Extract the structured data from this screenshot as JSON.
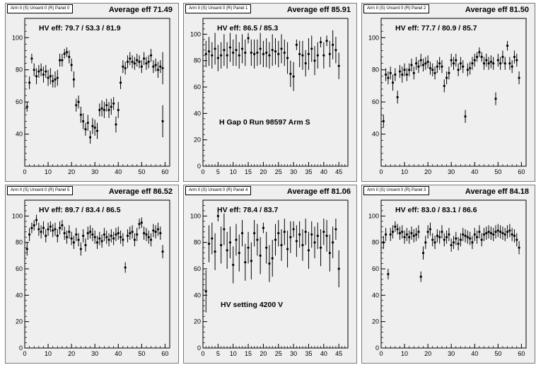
{
  "panels": [
    {
      "id": "p0",
      "title": "Arm II (S) Unsent 0 (R) Panel 0",
      "avg_label": "Average eff 71.49",
      "hv_label": "HV eff:   79.7 / 53.3 / 81.9",
      "extra_label": ""
    },
    {
      "id": "p1",
      "title": "Arm II (S) Unsent 0 (R) Panel 1",
      "avg_label": "Average eff 85.91",
      "hv_label": "HV eff:   86.5 / 85.3",
      "extra_label": "H Gap 0 Run 98597 Arm S"
    },
    {
      "id": "p2",
      "title": "Arm II (S) Unsent 0 (R) Panel 2",
      "avg_label": "Average eff 81.50",
      "hv_label": "HV eff:   77.7 / 80.9 / 85.7",
      "extra_label": ""
    },
    {
      "id": "p3",
      "title": "Arm II (S) Unsent 0 (R) Panel 5",
      "avg_label": "Average eff 86.52",
      "hv_label": "HV eff:   89.7 / 83.4 / 86.5",
      "extra_label": ""
    },
    {
      "id": "p4",
      "title": "Arm II (S) Unsent 0 (R) Panel 4",
      "avg_label": "Average eff 81.06",
      "hv_label": "HV eff:   78.4 / 83.7",
      "extra_label": "HV setting 4200 V"
    },
    {
      "id": "p5",
      "title": "Arm II (S) Unsent 0 (R) Panel 3",
      "avg_label": "Average eff 84.18",
      "hv_label": "HV eff:   83.0 / 83.1 / 86.6",
      "extra_label": ""
    }
  ],
  "chart_data": [
    {
      "type": "scatter",
      "xlim": [
        0,
        62
      ],
      "ylim": [
        20,
        112
      ],
      "xticks": [
        "0",
        "10",
        "20",
        "30",
        "40",
        "50",
        "60"
      ],
      "yticks": [
        "40",
        "60",
        "80",
        "100"
      ],
      "x": [
        1,
        2,
        3,
        4,
        5,
        6,
        7,
        8,
        9,
        10,
        11,
        12,
        13,
        14,
        15,
        16,
        17,
        18,
        19,
        20,
        21,
        22,
        23,
        24,
        25,
        26,
        27,
        28,
        29,
        30,
        31,
        32,
        33,
        34,
        35,
        36,
        37,
        38,
        39,
        40,
        41,
        42,
        43,
        44,
        45,
        46,
        47,
        48,
        49,
        50,
        51,
        52,
        53,
        54,
        55,
        56,
        57,
        58,
        59
      ],
      "y": [
        57,
        72,
        87,
        80,
        76,
        79,
        80,
        77,
        79,
        75,
        76,
        73,
        74,
        75,
        86,
        86,
        90,
        91,
        88,
        83,
        74,
        58,
        60,
        52,
        48,
        43,
        47,
        38,
        45,
        44,
        42,
        55,
        56,
        55,
        58,
        55,
        57,
        59,
        46,
        55,
        72,
        82,
        81,
        85,
        87,
        85,
        84,
        86,
        85,
        82,
        87,
        84,
        85,
        89,
        82,
        83,
        80,
        82,
        81
      ],
      "err": [
        3,
        4,
        3,
        4,
        5,
        4,
        4,
        5,
        4,
        5,
        5,
        4,
        5,
        5,
        4,
        4,
        3,
        3,
        4,
        4,
        5,
        4,
        4,
        5,
        5,
        4,
        5,
        4,
        5,
        5,
        5,
        4,
        5,
        5,
        4,
        5,
        5,
        4,
        5,
        5,
        4,
        4,
        4,
        4,
        4,
        4,
        4,
        4,
        4,
        4,
        4,
        4,
        4,
        4,
        4,
        4,
        5,
        4,
        10
      ],
      "extra": [
        {
          "x": 59,
          "y": 48,
          "err": 10
        }
      ]
    },
    {
      "type": "scatter",
      "xlim": [
        0,
        48
      ],
      "ylim": [
        0,
        112
      ],
      "xticks": [
        "0",
        "5",
        "10",
        "15",
        "20",
        "25",
        "30",
        "35",
        "40",
        "45"
      ],
      "yticks": [
        "0",
        "20",
        "40",
        "60",
        "80",
        "100"
      ],
      "x": [
        1,
        2,
        3,
        4,
        5,
        6,
        7,
        8,
        9,
        10,
        11,
        12,
        13,
        14,
        15,
        16,
        17,
        18,
        19,
        20,
        21,
        22,
        23,
        24,
        25,
        26,
        27,
        28,
        29,
        30,
        31,
        32,
        33,
        34,
        35,
        36,
        37,
        38,
        39,
        40,
        41,
        42,
        43,
        44,
        45
      ],
      "y": [
        85,
        87,
        84,
        89,
        82,
        84,
        88,
        84,
        90,
        86,
        88,
        84,
        89,
        86,
        97,
        86,
        85,
        86,
        89,
        85,
        86,
        84,
        88,
        87,
        85,
        89,
        86,
        82,
        70,
        68,
        92,
        85,
        84,
        78,
        85,
        89,
        80,
        84,
        94,
        84,
        95,
        85,
        92,
        88,
        76
      ],
      "err": [
        10,
        11,
        10,
        12,
        10,
        10,
        12,
        10,
        11,
        10,
        12,
        10,
        11,
        10,
        4,
        10,
        11,
        10,
        12,
        10,
        11,
        10,
        12,
        10,
        10,
        11,
        10,
        12,
        10,
        11,
        4,
        10,
        11,
        10,
        12,
        10,
        11,
        10,
        4,
        10,
        4,
        10,
        11,
        10,
        10
      ]
    },
    {
      "type": "scatter",
      "xlim": [
        0,
        62
      ],
      "ylim": [
        20,
        112
      ],
      "xticks": [
        "0",
        "10",
        "20",
        "30",
        "40",
        "50",
        "60"
      ],
      "yticks": [
        "40",
        "60",
        "80",
        "100"
      ],
      "x": [
        1,
        2,
        3,
        4,
        5,
        6,
        7,
        8,
        9,
        10,
        11,
        12,
        13,
        14,
        15,
        16,
        17,
        18,
        19,
        20,
        21,
        22,
        23,
        24,
        25,
        26,
        27,
        28,
        29,
        30,
        31,
        32,
        33,
        34,
        35,
        36,
        37,
        38,
        39,
        40,
        41,
        42,
        43,
        44,
        45,
        46,
        47,
        48,
        49,
        50,
        51,
        52,
        53,
        54,
        55,
        56,
        57,
        58,
        59
      ],
      "y": [
        48,
        77,
        75,
        78,
        72,
        77,
        63,
        79,
        77,
        80,
        77,
        80,
        83,
        78,
        84,
        82,
        86,
        83,
        84,
        85,
        81,
        80,
        78,
        82,
        84,
        82,
        70,
        75,
        78,
        86,
        84,
        86,
        80,
        84,
        82,
        51,
        80,
        81,
        84,
        86,
        88,
        91,
        88,
        84,
        86,
        84,
        85,
        84,
        62,
        86,
        84,
        88,
        84,
        95,
        84,
        82,
        88,
        86,
        75
      ],
      "err": [
        4,
        4,
        4,
        4,
        5,
        4,
        4,
        4,
        5,
        4,
        4,
        4,
        4,
        4,
        4,
        4,
        4,
        4,
        4,
        4,
        4,
        4,
        4,
        4,
        4,
        4,
        4,
        4,
        4,
        4,
        4,
        4,
        4,
        4,
        4,
        4,
        4,
        4,
        4,
        4,
        3,
        3,
        3,
        4,
        4,
        4,
        4,
        4,
        4,
        4,
        4,
        4,
        4,
        3,
        4,
        4,
        4,
        4,
        4
      ]
    },
    {
      "type": "scatter",
      "xlim": [
        0,
        62
      ],
      "ylim": [
        0,
        112
      ],
      "xticks": [
        "0",
        "10",
        "20",
        "30",
        "40",
        "50",
        "60"
      ],
      "yticks": [
        "0",
        "20",
        "40",
        "60",
        "80",
        "100"
      ],
      "x": [
        1,
        2,
        3,
        4,
        5,
        6,
        7,
        8,
        9,
        10,
        11,
        12,
        13,
        14,
        15,
        16,
        17,
        18,
        19,
        20,
        21,
        22,
        23,
        24,
        25,
        26,
        27,
        28,
        29,
        30,
        31,
        32,
        33,
        34,
        35,
        36,
        37,
        38,
        39,
        40,
        41,
        42,
        43,
        44,
        45,
        46,
        47,
        48,
        49,
        50,
        51,
        52,
        53,
        54,
        55,
        56,
        57,
        58,
        59
      ],
      "y": [
        75,
        86,
        91,
        93,
        97,
        90,
        88,
        91,
        85,
        90,
        92,
        89,
        90,
        85,
        91,
        93,
        87,
        84,
        88,
        83,
        80,
        86,
        82,
        75,
        85,
        78,
        87,
        88,
        86,
        84,
        80,
        83,
        81,
        86,
        84,
        82,
        85,
        83,
        86,
        87,
        84,
        82,
        61,
        85,
        87,
        88,
        82,
        86,
        94,
        95,
        87,
        86,
        84,
        82,
        89,
        88,
        90,
        87,
        73
      ],
      "err": [
        5,
        5,
        4,
        4,
        4,
        5,
        5,
        5,
        5,
        5,
        4,
        5,
        5,
        5,
        5,
        4,
        5,
        5,
        5,
        5,
        5,
        5,
        5,
        5,
        5,
        5,
        5,
        5,
        5,
        5,
        5,
        5,
        5,
        5,
        5,
        5,
        5,
        5,
        5,
        5,
        5,
        5,
        4,
        5,
        5,
        5,
        5,
        5,
        4,
        4,
        5,
        5,
        5,
        5,
        5,
        5,
        5,
        5,
        5
      ]
    },
    {
      "type": "scatter",
      "xlim": [
        0,
        48
      ],
      "ylim": [
        0,
        112
      ],
      "xticks": [
        "0",
        "5",
        "10",
        "15",
        "20",
        "25",
        "30",
        "35",
        "40",
        "45"
      ],
      "yticks": [
        "0",
        "20",
        "40",
        "60",
        "80",
        "100"
      ],
      "x": [
        1,
        2,
        3,
        4,
        5,
        6,
        7,
        8,
        9,
        10,
        11,
        12,
        13,
        14,
        15,
        16,
        17,
        18,
        19,
        20,
        21,
        22,
        23,
        24,
        25,
        26,
        27,
        28,
        29,
        30,
        31,
        32,
        33,
        34,
        35,
        36,
        37,
        38,
        39,
        40,
        41,
        42,
        43,
        44,
        45
      ],
      "y": [
        43,
        79,
        83,
        73,
        100,
        78,
        90,
        74,
        80,
        63,
        82,
        72,
        87,
        65,
        76,
        66,
        87,
        82,
        70,
        91,
        76,
        64,
        68,
        82,
        87,
        78,
        88,
        75,
        84,
        90,
        81,
        86,
        78,
        88,
        74,
        86,
        80,
        85,
        76,
        88,
        85,
        72,
        80,
        90,
        60
      ],
      "err": [
        16,
        14,
        12,
        14,
        4,
        14,
        12,
        14,
        12,
        14,
        12,
        14,
        10,
        14,
        12,
        14,
        10,
        12,
        14,
        4,
        12,
        14,
        14,
        12,
        10,
        12,
        10,
        14,
        12,
        6,
        12,
        10,
        12,
        10,
        14,
        10,
        12,
        10,
        14,
        10,
        12,
        14,
        12,
        8,
        14
      ]
    },
    {
      "type": "scatter",
      "xlim": [
        0,
        62
      ],
      "ylim": [
        0,
        112
      ],
      "xticks": [
        "0",
        "10",
        "20",
        "30",
        "40",
        "50",
        "60"
      ],
      "yticks": [
        "0",
        "20",
        "40",
        "60",
        "80",
        "100"
      ],
      "x": [
        1,
        2,
        3,
        4,
        5,
        6,
        7,
        8,
        9,
        10,
        11,
        12,
        13,
        14,
        15,
        16,
        17,
        18,
        19,
        20,
        21,
        22,
        23,
        24,
        25,
        26,
        27,
        28,
        29,
        30,
        31,
        32,
        33,
        34,
        35,
        36,
        37,
        38,
        39,
        40,
        41,
        42,
        43,
        44,
        45,
        46,
        47,
        48,
        49,
        50,
        51,
        52,
        53,
        54,
        55,
        56,
        57,
        58,
        59
      ],
      "y": [
        80,
        86,
        56,
        86,
        88,
        92,
        90,
        87,
        88,
        84,
        86,
        84,
        87,
        85,
        86,
        88,
        54,
        72,
        80,
        88,
        90,
        82,
        80,
        85,
        84,
        88,
        82,
        84,
        86,
        78,
        80,
        83,
        79,
        82,
        86,
        85,
        84,
        83,
        80,
        86,
        84,
        88,
        82,
        86,
        87,
        88,
        87,
        86,
        88,
        89,
        88,
        87,
        86,
        88,
        89,
        86,
        85,
        82,
        76
      ],
      "err": [
        5,
        5,
        4,
        5,
        5,
        4,
        4,
        5,
        5,
        5,
        5,
        5,
        5,
        5,
        5,
        5,
        4,
        5,
        5,
        5,
        5,
        5,
        5,
        5,
        5,
        5,
        5,
        5,
        5,
        5,
        5,
        5,
        5,
        5,
        5,
        5,
        5,
        5,
        5,
        5,
        5,
        5,
        5,
        5,
        5,
        5,
        5,
        5,
        5,
        5,
        5,
        5,
        5,
        5,
        5,
        5,
        5,
        5,
        5
      ]
    }
  ]
}
